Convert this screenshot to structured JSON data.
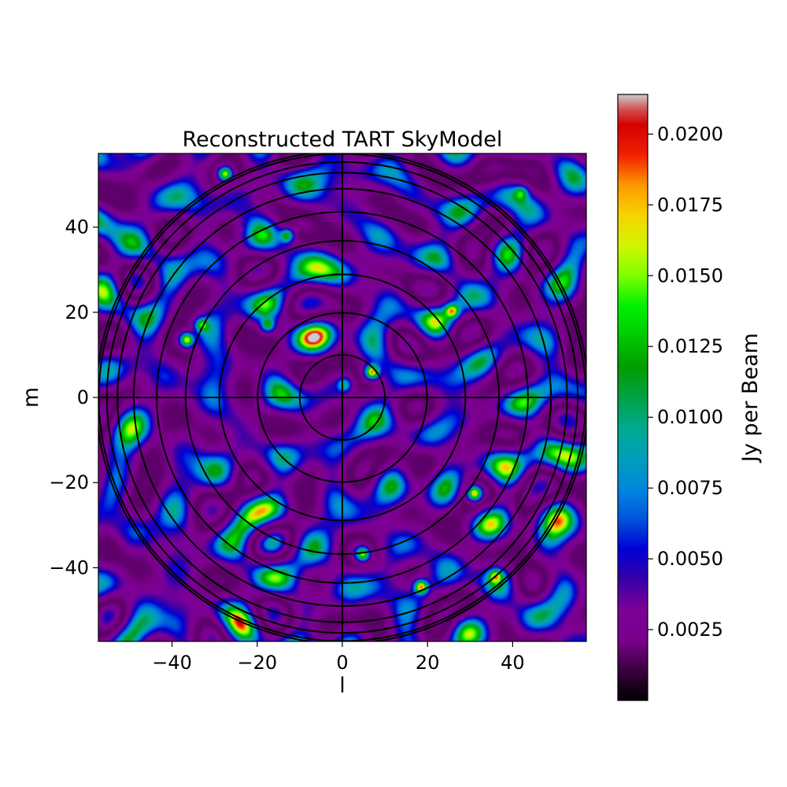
{
  "chart_data": {
    "type": "heatmap",
    "title": "Reconstructed TART SkyModel",
    "xlabel": "l",
    "ylabel": "m",
    "xlim": [
      -57.3,
      57.3
    ],
    "ylim": [
      -57.3,
      57.3
    ],
    "xticks": [
      -40,
      -20,
      0,
      20,
      40
    ],
    "yticks": [
      -40,
      -20,
      0,
      20,
      40
    ],
    "xtick_labels": [
      "−40",
      "−20",
      "0",
      "20",
      "40"
    ],
    "ytick_labels": [
      "−40",
      "−20",
      "0",
      "20",
      "40"
    ],
    "colormap": "nipy_spectral",
    "colorbar": {
      "label": "Jy per Beam",
      "range": [
        0.0,
        0.0214
      ],
      "ticks": [
        0.0025,
        0.005,
        0.0075,
        0.01,
        0.0125,
        0.015,
        0.0175,
        0.02
      ],
      "tick_labels": [
        "0.0025",
        "0.0050",
        "0.0075",
        "0.0100",
        "0.0125",
        "0.0150",
        "0.0175",
        "0.0200"
      ]
    },
    "overlay_circle_radii": [
      10,
      19.9,
      28.9,
      36.8,
      43.6,
      49,
      52.8,
      55.3,
      57.2,
      57.8
    ],
    "bright_sources": [
      {
        "l": 7,
        "m": 6,
        "value": 0.0205
      },
      {
        "l": -36.5,
        "m": 13.5,
        "value": 0.019
      },
      {
        "l": -27.5,
        "m": 52.5,
        "value": 0.018
      },
      {
        "l": 18.5,
        "m": -44.5,
        "value": 0.02
      },
      {
        "l": 31,
        "m": -22.5,
        "value": 0.019
      },
      {
        "l": 4.8,
        "m": -36.8,
        "value": 0.017
      },
      {
        "l": 25.8,
        "m": 20.3,
        "value": 0.016
      },
      {
        "l": -13,
        "m": 38,
        "value": 0.014
      },
      {
        "l": 36,
        "m": -42,
        "value": 0.014
      },
      {
        "l": -17.5,
        "m": 17,
        "value": 0.013
      },
      {
        "l": 0.5,
        "m": 3,
        "value": 0.011
      },
      {
        "l": 42,
        "m": 48,
        "value": 0.011
      },
      {
        "l": -33,
        "m": 17,
        "value": 0.013
      }
    ]
  }
}
